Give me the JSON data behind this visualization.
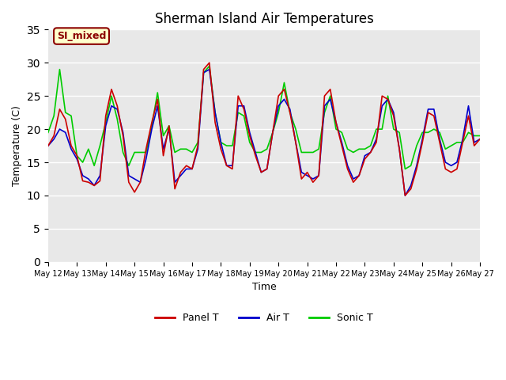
{
  "title": "Sherman Island Air Temperatures",
  "xlabel": "Time",
  "ylabel": "Temperature (C)",
  "ylim": [
    0,
    35
  ],
  "yticks": [
    0,
    5,
    10,
    15,
    20,
    25,
    30,
    35
  ],
  "x_labels": [
    "May 12",
    "May 13",
    "May 14",
    "May 15",
    "May 16",
    "May 17",
    "May 18",
    "May 19",
    "May 20",
    "May 21",
    "May 22",
    "May 23",
    "May 24",
    "May 25",
    "May 26",
    "May 27"
  ],
  "annotation_text": "SI_mixed",
  "annotation_bg": "#ffffcc",
  "annotation_border": "#8b0000",
  "annotation_text_color": "#8b0000",
  "panel_color": "#cc0000",
  "air_color": "#0000cc",
  "sonic_color": "#00cc00",
  "background_color": "#e8e8e8",
  "grid_color": "white",
  "legend_labels": [
    "Panel T",
    "Air T",
    "Sonic T"
  ],
  "days_total": 15,
  "panel_t": [
    17.5,
    19.0,
    23.0,
    21.5,
    17.5,
    16.0,
    12.2,
    12.0,
    11.5,
    12.2,
    22.0,
    26.0,
    23.5,
    19.0,
    12.0,
    10.5,
    12.0,
    17.0,
    21.0,
    24.5,
    16.0,
    20.5,
    11.0,
    13.5,
    14.5,
    14.0,
    17.5,
    29.0,
    30.0,
    21.0,
    17.0,
    14.5,
    14.0,
    25.0,
    23.0,
    19.0,
    16.0,
    13.5,
    14.0,
    19.5,
    25.0,
    26.0,
    22.5,
    18.0,
    12.5,
    13.5,
    12.0,
    13.0,
    25.0,
    26.0,
    21.0,
    17.5,
    14.0,
    12.0,
    13.0,
    15.5,
    16.5,
    18.0,
    25.0,
    24.5,
    22.0,
    17.0,
    10.0,
    11.0,
    14.0,
    18.0,
    22.5,
    22.0,
    18.0,
    14.0,
    13.5,
    14.0,
    18.0,
    22.0,
    17.5,
    18.5
  ],
  "air_t": [
    17.5,
    18.5,
    20.0,
    19.5,
    17.0,
    15.5,
    13.0,
    12.5,
    11.5,
    13.0,
    20.5,
    23.5,
    23.0,
    19.5,
    13.0,
    12.5,
    12.0,
    15.5,
    20.0,
    23.5,
    17.0,
    20.0,
    12.0,
    13.0,
    14.0,
    14.0,
    17.0,
    28.5,
    29.0,
    22.5,
    18.0,
    14.5,
    14.5,
    23.5,
    23.5,
    19.5,
    16.5,
    13.5,
    14.0,
    19.5,
    23.5,
    24.5,
    23.0,
    18.0,
    13.5,
    13.0,
    12.5,
    13.0,
    23.5,
    24.5,
    21.0,
    18.0,
    14.5,
    12.5,
    13.0,
    16.0,
    16.5,
    18.5,
    23.5,
    24.5,
    22.5,
    17.0,
    10.0,
    11.5,
    14.5,
    18.5,
    23.0,
    23.0,
    18.5,
    15.0,
    14.5,
    15.0,
    18.5,
    23.5,
    18.0,
    18.5
  ],
  "sonic_t": [
    19.5,
    22.0,
    29.0,
    22.5,
    22.0,
    16.0,
    15.0,
    17.0,
    14.5,
    17.5,
    21.0,
    25.0,
    21.5,
    16.5,
    14.5,
    16.5,
    16.5,
    16.5,
    20.5,
    25.5,
    19.0,
    20.5,
    16.5,
    17.0,
    17.0,
    16.5,
    18.0,
    28.5,
    29.5,
    22.5,
    18.0,
    17.5,
    17.5,
    22.5,
    22.0,
    18.0,
    16.5,
    16.5,
    17.0,
    19.5,
    22.5,
    27.0,
    22.5,
    20.0,
    16.5,
    16.5,
    16.5,
    17.0,
    22.5,
    25.0,
    20.0,
    19.5,
    17.0,
    16.5,
    17.0,
    17.0,
    17.5,
    20.0,
    20.0,
    25.0,
    20.0,
    19.5,
    14.0,
    14.5,
    17.5,
    19.5,
    19.5,
    20.0,
    19.5,
    17.0,
    17.5,
    18.0,
    18.0,
    19.5,
    19.0,
    19.0
  ]
}
